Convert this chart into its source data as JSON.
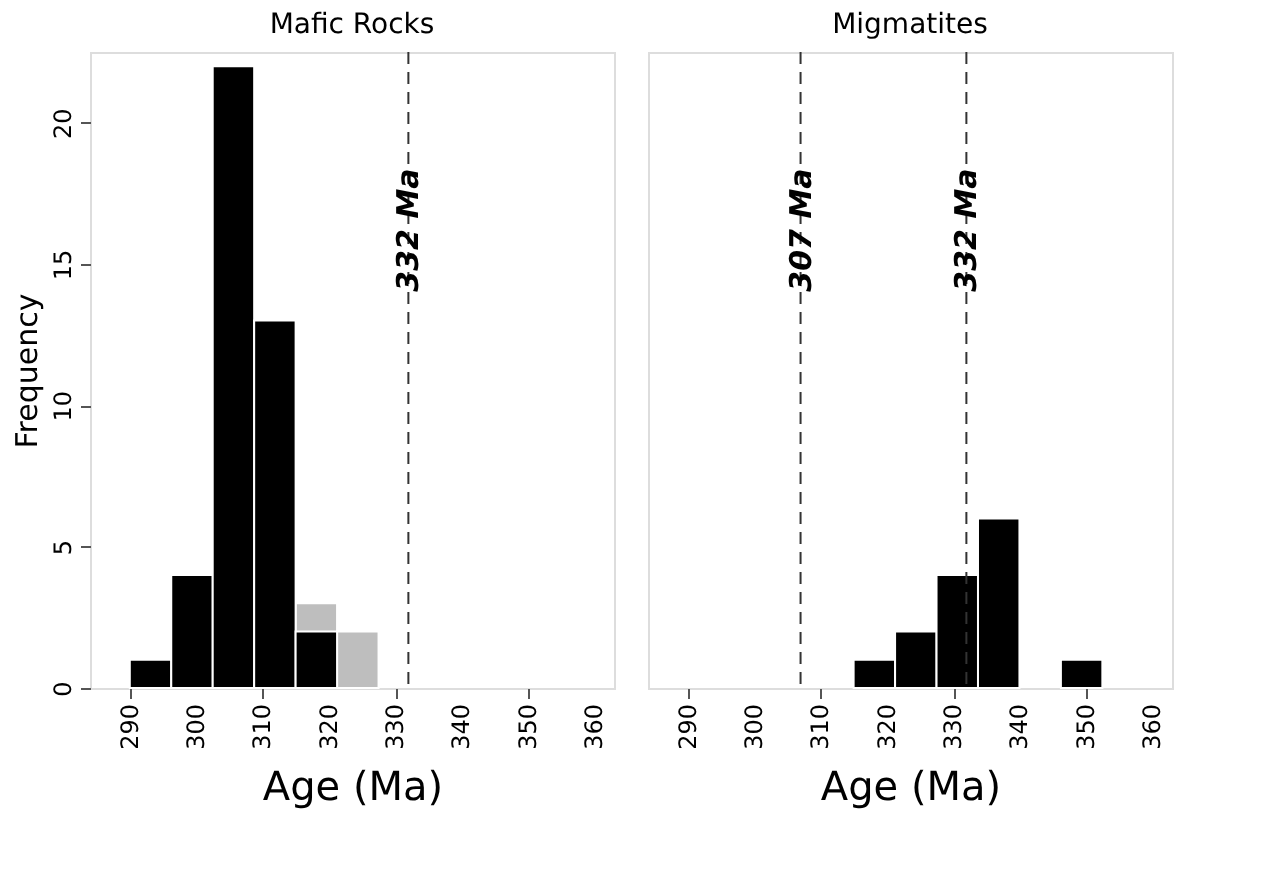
{
  "chart_data": [
    {
      "type": "histogram",
      "title": "Mafic Rocks",
      "xlabel": "Age (Ma)",
      "ylabel": "Frequency",
      "bins": [
        290,
        296.25,
        302.5,
        308.75,
        315,
        321.25,
        327.5
      ],
      "series": [
        {
          "color": "#bebebe",
          "values": [
            null,
            null,
            null,
            null,
            3,
            2
          ]
        },
        {
          "color": "#000000",
          "values": [
            1,
            4,
            22,
            13,
            2,
            null
          ]
        }
      ],
      "xlim": [
        284,
        363
      ],
      "xticks": [
        290,
        300,
        310,
        320,
        330,
        340,
        350,
        360
      ],
      "ylim": [
        0,
        22.5
      ],
      "yticks": [
        0,
        5,
        10,
        15,
        20
      ],
      "ref_lines": [
        {
          "axis": "x",
          "value": 332,
          "label": "332 Ma",
          "line_style": "dashed"
        }
      ]
    },
    {
      "type": "histogram",
      "title": "Migmatites",
      "xlabel": "Age (Ma)",
      "bins": [
        315,
        321.25,
        327.5,
        333.75,
        340,
        346.25,
        352.5
      ],
      "series": [
        {
          "color": "#000000",
          "values": [
            1,
            2,
            4,
            6,
            0,
            1
          ]
        }
      ],
      "xlim": [
        284,
        363
      ],
      "xticks": [
        290,
        300,
        310,
        320,
        330,
        340,
        350,
        360
      ],
      "ylim": [
        0,
        22.5
      ],
      "yticks": [
        0,
        5,
        10,
        15,
        20
      ],
      "tick_labels": "x",
      "ref_lines": [
        {
          "axis": "x",
          "value": 307,
          "label": "307 Ma",
          "line_style": "dashed"
        },
        {
          "axis": "x",
          "value": 332,
          "label": "332 Ma",
          "line_style": "dashed"
        }
      ]
    }
  ]
}
